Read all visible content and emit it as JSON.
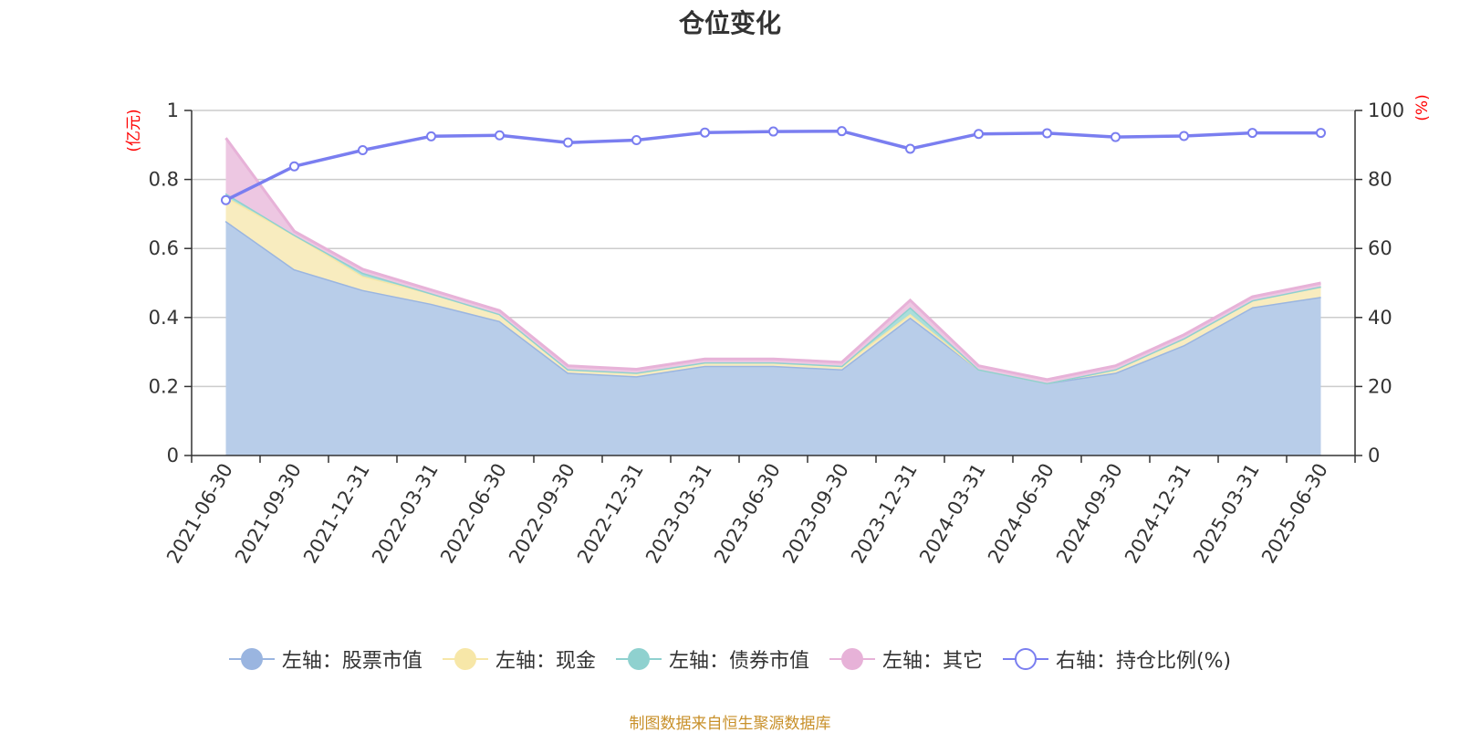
{
  "chart_data": {
    "type": "area",
    "title": "仓位变化",
    "source": "制图数据来自恒生聚源数据库",
    "left_axis": {
      "unit": "(亿元)",
      "ylim": [
        0,
        1
      ],
      "ticks": [
        "0",
        "0.2",
        "0.4",
        "0.6",
        "0.8",
        "1"
      ]
    },
    "right_axis": {
      "unit": "(%)",
      "ylim": [
        0,
        100
      ],
      "ticks": [
        "0",
        "20",
        "40",
        "60",
        "80",
        "100"
      ]
    },
    "categories": [
      "2021-06-30",
      "2021-09-30",
      "2021-12-31",
      "2022-03-31",
      "2022-06-30",
      "2022-09-30",
      "2022-12-31",
      "2023-03-31",
      "2023-06-30",
      "2023-09-30",
      "2023-12-31",
      "2024-03-31",
      "2024-06-30",
      "2024-09-30",
      "2024-12-31",
      "2025-03-31",
      "2025-06-30"
    ],
    "stack_series": [
      {
        "name": "左轴：股票市值",
        "color": "#9ab5e0",
        "fill": "#b8cde9",
        "values": [
          0.68,
          0.54,
          0.48,
          0.44,
          0.39,
          0.24,
          0.23,
          0.26,
          0.26,
          0.25,
          0.4,
          0.25,
          0.21,
          0.24,
          0.32,
          0.43,
          0.46
        ]
      },
      {
        "name": "左轴：现金",
        "color": "#f7e7a8",
        "fill": "#f8ecbf",
        "values": [
          0.07,
          0.1,
          0.04,
          0.03,
          0.02,
          0.01,
          0.01,
          0.01,
          0.01,
          0.01,
          0.01,
          0.0,
          0.0,
          0.01,
          0.02,
          0.02,
          0.03
        ]
      },
      {
        "name": "左轴：债券市值",
        "color": "#8fd1cf",
        "fill": "#aadedb",
        "values": [
          0.01,
          0.0,
          0.01,
          0.0,
          0.0,
          0.0,
          0.0,
          0.0,
          0.0,
          0.0,
          0.02,
          0.0,
          0.0,
          0.0,
          0.0,
          0.0,
          0.0
        ]
      },
      {
        "name": "左轴：其它",
        "color": "#e7b2d8",
        "fill": "#edc7e2",
        "values": [
          0.16,
          0.01,
          0.01,
          0.01,
          0.01,
          0.01,
          0.01,
          0.01,
          0.01,
          0.01,
          0.02,
          0.01,
          0.01,
          0.01,
          0.01,
          0.01,
          0.01
        ]
      }
    ],
    "line_series": {
      "name": "右轴：持仓比例(%)",
      "color": "#7a7ef0",
      "values": [
        74.0,
        83.8,
        88.5,
        92.5,
        92.8,
        90.7,
        91.4,
        93.6,
        93.9,
        94.0,
        88.9,
        93.2,
        93.4,
        92.3,
        92.6,
        93.5,
        93.5
      ]
    },
    "grid": true,
    "legend_position": "bottom"
  }
}
